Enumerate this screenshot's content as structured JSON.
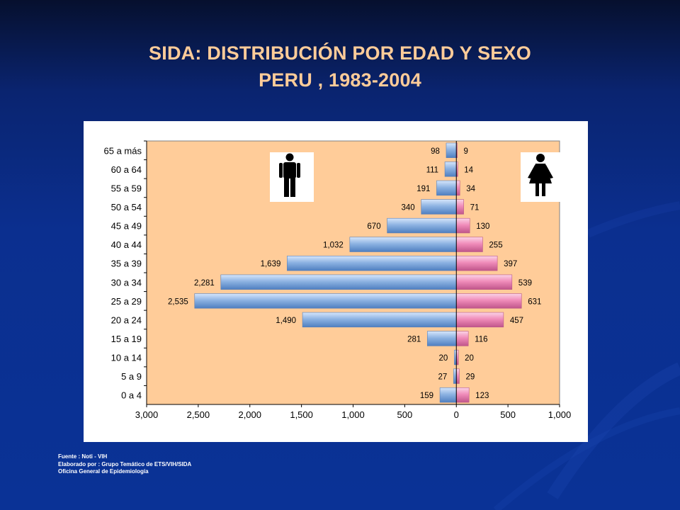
{
  "title": {
    "line1": "SIDA: DISTRIBUCIÓN POR EDAD Y SEXO",
    "line2": "PERU , 1983-2004"
  },
  "chart_data": {
    "type": "bar",
    "orientation": "horizontal-population-pyramid",
    "categories": [
      "65 a más",
      "60 a 64",
      "55 a 59",
      "50 a 54",
      "45 a 49",
      "40 a 44",
      "35 a 39",
      "30 a 34",
      "25 a 29",
      "20 a 24",
      "15 a 19",
      "10 a 14",
      "5 a 9",
      "0 a 4"
    ],
    "series": [
      {
        "values": [
          98,
          111,
          191,
          340,
          670,
          1032,
          1639,
          2281,
          2535,
          1490,
          281,
          20,
          27,
          159
        ],
        "labels": [
          "98",
          "111",
          "191",
          "340",
          "670",
          "1,032",
          "1,639",
          "2,281",
          "2,535",
          "1,490",
          "281",
          "20",
          "27",
          "159"
        ],
        "color": "#8db3e2"
      },
      {
        "values": [
          9,
          14,
          34,
          71,
          130,
          255,
          397,
          539,
          631,
          457,
          116,
          20,
          29,
          123
        ],
        "labels": [
          "9",
          "14",
          "34",
          "71",
          "130",
          "255",
          "397",
          "539",
          "631",
          "457",
          "116",
          "20",
          "29",
          "123"
        ],
        "color": "#f49ac1"
      }
    ],
    "xlim": [
      -3000,
      1000
    ],
    "x_ticks": [
      -3000,
      -2500,
      -2000,
      -1500,
      -1000,
      -500,
      0,
      500,
      1000
    ],
    "x_tick_labels": [
      "3,000",
      "2,500",
      "2,000",
      "1,500",
      "1,000",
      "500",
      "0",
      "500",
      "1,000"
    ],
    "plot_background": "#ffcc99",
    "grid": false,
    "legend": "pictograms: male icon left, female icon right"
  },
  "source": {
    "line1": "Fuente : Noti - VIH",
    "line2": "Elaborado por :  Grupo Temático de ETS/VIH/SIDA",
    "line3": "Oficina General de Epidemiología"
  },
  "icons": {
    "male": "male-person-icon",
    "female": "female-person-icon"
  }
}
